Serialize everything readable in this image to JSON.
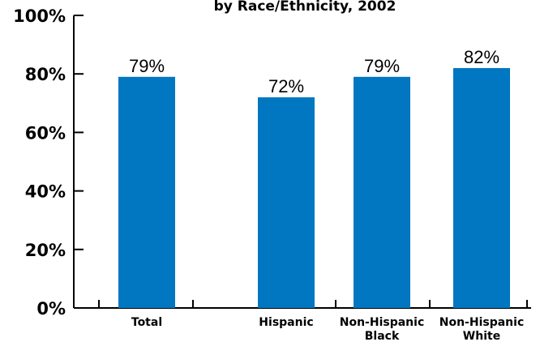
{
  "chart_data": {
    "type": "bar",
    "title": "by Race/Ethnicity, 2002",
    "categories": [
      [
        "Total"
      ],
      [
        "Hispanic"
      ],
      [
        "Non-Hispanic",
        "Black"
      ],
      [
        "Non-Hispanic",
        "White"
      ]
    ],
    "values": [
      79,
      72,
      79,
      82
    ],
    "data_labels": [
      "79%",
      "72%",
      "79%",
      "82%"
    ],
    "ylim": [
      0,
      100
    ],
    "yticks": [
      0,
      20,
      40,
      60,
      80,
      100
    ],
    "ytick_labels": [
      "0%",
      "20%",
      "40%",
      "60%",
      "80%",
      "100%"
    ],
    "xlabel": "",
    "ylabel": "",
    "bar_color": "#0077c0",
    "grid": false,
    "legend": "none"
  }
}
